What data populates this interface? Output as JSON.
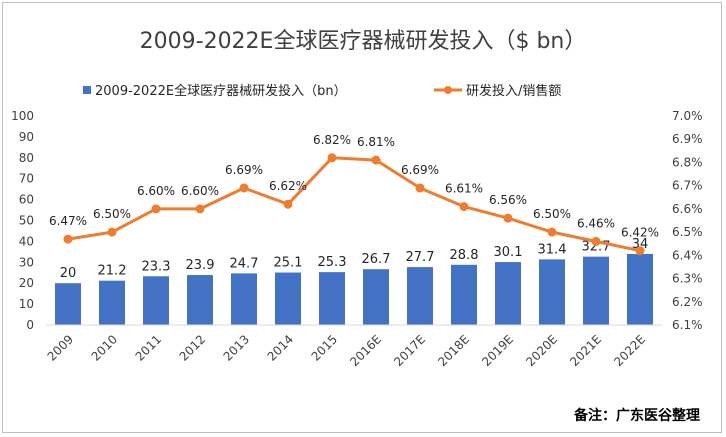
{
  "chart_data": {
    "type": "bar",
    "title": "2009-2022E全球医疗器械研发投入（$ bn）",
    "note": "备注：广东医谷整理",
    "categories": [
      "2009",
      "2010",
      "2011",
      "2012",
      "2013",
      "2014",
      "2015",
      "2016E",
      "2017E",
      "2018E",
      "2019E",
      "2020E",
      "2021E",
      "2022E"
    ],
    "series": [
      {
        "name": "2009-2022E全球医疗器械研发投入（bn）",
        "kind": "bar",
        "axis": "left",
        "color": "#4472c4",
        "values": [
          20,
          21.2,
          23.3,
          23.9,
          24.7,
          25.1,
          25.3,
          26.7,
          27.7,
          28.8,
          30.1,
          31.4,
          32.7,
          34
        ],
        "labels": [
          "20",
          "21.2",
          "23.3",
          "23.9",
          "24.7",
          "25.1",
          "25.3",
          "26.7",
          "27.7",
          "28.8",
          "30.1",
          "31.4",
          "32.7",
          "34"
        ]
      },
      {
        "name": "研发投入/销售额",
        "kind": "line",
        "axis": "right",
        "color": "#ed7d31",
        "values": [
          6.47,
          6.5,
          6.6,
          6.6,
          6.69,
          6.62,
          6.82,
          6.81,
          6.69,
          6.61,
          6.56,
          6.5,
          6.46,
          6.42
        ],
        "labels": [
          "6.47%",
          "6.50%",
          "6.60%",
          "6.60%",
          "6.69%",
          "6.62%",
          "6.82%",
          "6.81%",
          "6.69%",
          "6.61%",
          "6.56%",
          "6.50%",
          "6.46%",
          "6.42%"
        ]
      }
    ],
    "y_left": {
      "min": 0,
      "max": 100,
      "ticks": [
        "0",
        "10",
        "20",
        "30",
        "40",
        "50",
        "60",
        "70",
        "80",
        "90",
        "100"
      ]
    },
    "y_right": {
      "min": 6.1,
      "max": 7.0,
      "ticks": [
        "6.1%",
        "6.2%",
        "6.3%",
        "6.4%",
        "6.5%",
        "6.6%",
        "6.7%",
        "6.8%",
        "6.9%",
        "7.0%"
      ]
    },
    "grid": false,
    "legend_position": "top"
  }
}
